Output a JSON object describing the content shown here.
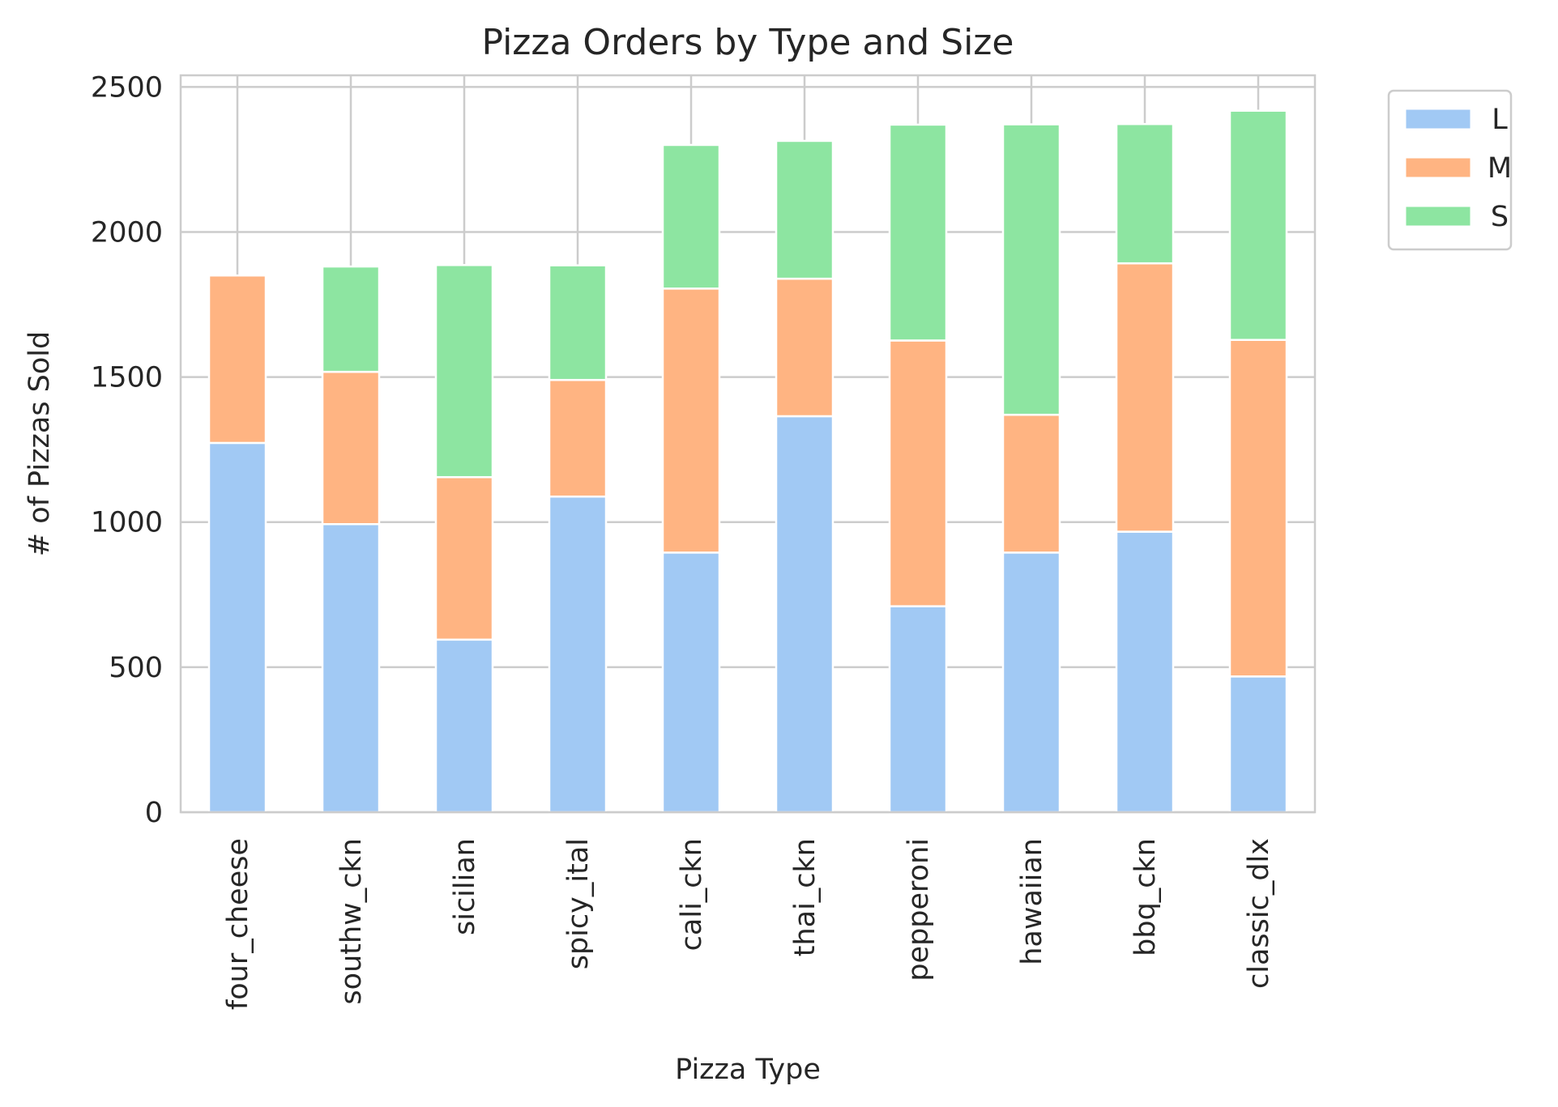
{
  "chart_data": {
    "type": "bar",
    "stacked": true,
    "title": "Pizza Orders by Type and Size",
    "xlabel": "Pizza Type",
    "ylabel": "# of Pizzas Sold",
    "ylim": [
      0,
      2540
    ],
    "yticks": [
      0,
      500,
      1000,
      1500,
      2000,
      2500
    ],
    "grid": true,
    "legend_position": "outside-top-right",
    "categories": [
      "four_cheese",
      "southw_ckn",
      "sicilian",
      "spicy_ital",
      "cali_ckn",
      "thai_ckn",
      "pepperoni",
      "hawaiian",
      "bbq_ckn",
      "classic_dlx"
    ],
    "series": [
      {
        "name": "L",
        "color": "#a1c9f4",
        "values": [
          1273,
          993,
          595,
          1088,
          895,
          1365,
          710,
          895,
          967,
          468
        ]
      },
      {
        "name": "M",
        "color": "#ffb482",
        "values": [
          577,
          525,
          560,
          402,
          910,
          474,
          916,
          475,
          925,
          1160
        ]
      },
      {
        "name": "S",
        "color": "#8de5a1",
        "values": [
          0,
          363,
          731,
          395,
          495,
          475,
          744,
          1001,
          480,
          790
        ]
      }
    ]
  }
}
